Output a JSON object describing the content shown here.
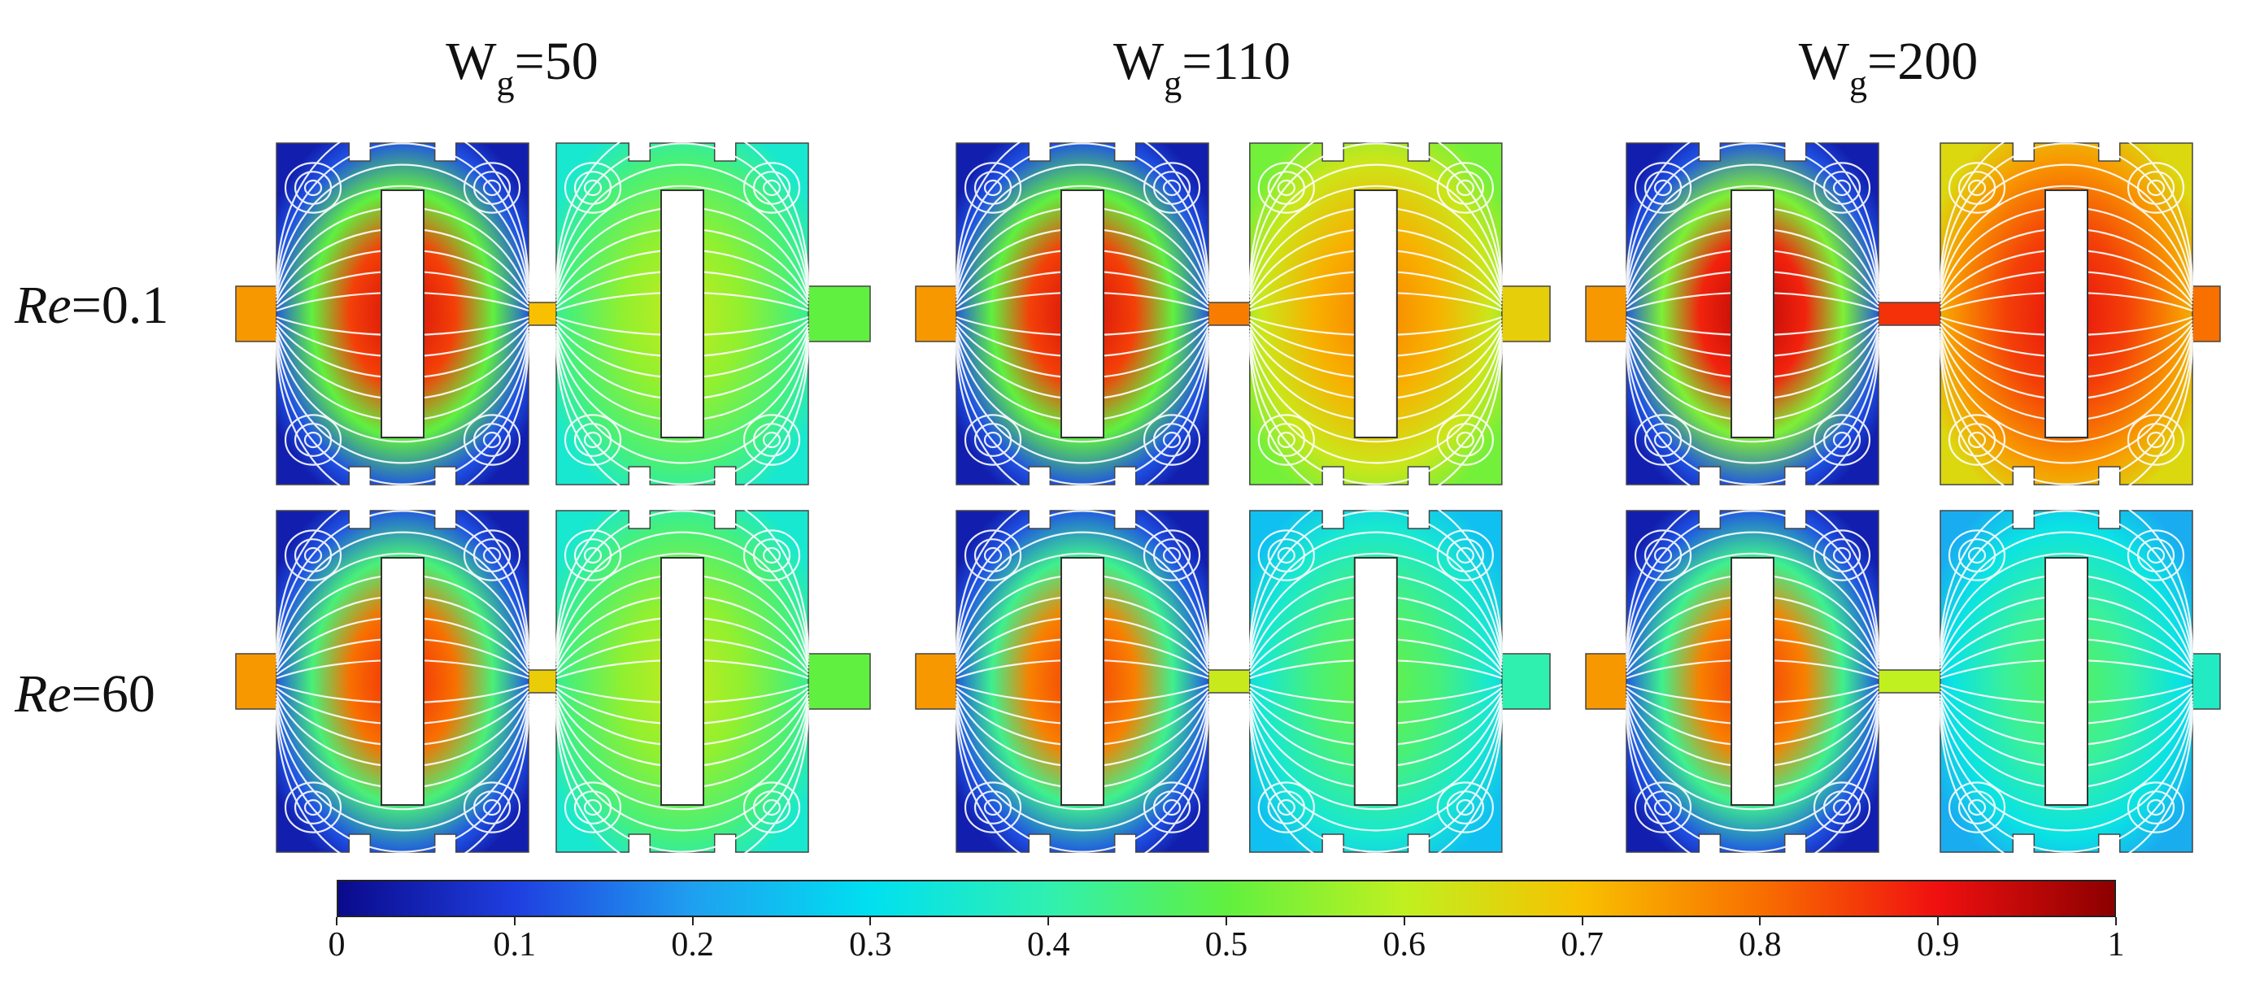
{
  "columns": [
    {
      "prefix": "W",
      "sub": "g",
      "value": "=50"
    },
    {
      "prefix": "W",
      "sub": "g",
      "value": "=110"
    },
    {
      "prefix": "W",
      "sub": "g",
      "value": "=200"
    }
  ],
  "rows": [
    {
      "italic": "Re",
      "value": "=0.1"
    },
    {
      "italic": "Re",
      "value": "=60"
    }
  ],
  "panels": [
    {
      "row": 0,
      "col": 0,
      "chamber_values": [
        0.85,
        0.55
      ]
    },
    {
      "row": 0,
      "col": 1,
      "chamber_values": [
        0.85,
        0.72
      ]
    },
    {
      "row": 0,
      "col": 2,
      "chamber_values": [
        0.88,
        0.85
      ]
    },
    {
      "row": 1,
      "col": 0,
      "chamber_values": [
        0.8,
        0.55
      ]
    },
    {
      "row": 1,
      "col": 1,
      "chamber_values": [
        0.78,
        0.45
      ]
    },
    {
      "row": 1,
      "col": 2,
      "chamber_values": [
        0.78,
        0.42
      ]
    }
  ],
  "colorbar": {
    "min": 0,
    "max": 1,
    "ticks": [
      "0",
      "0.1",
      "0.2",
      "0.3",
      "0.4",
      "0.5",
      "0.6",
      "0.7",
      "0.8",
      "0.9",
      "1"
    ],
    "colors": [
      "#0a0a8c",
      "#1f3fe0",
      "#1fa0f0",
      "#00e0f0",
      "#30f0b0",
      "#60f040",
      "#c0f020",
      "#f8c000",
      "#f87000",
      "#f01010",
      "#8c0000"
    ]
  },
  "streamline_color": "#ffffff"
}
